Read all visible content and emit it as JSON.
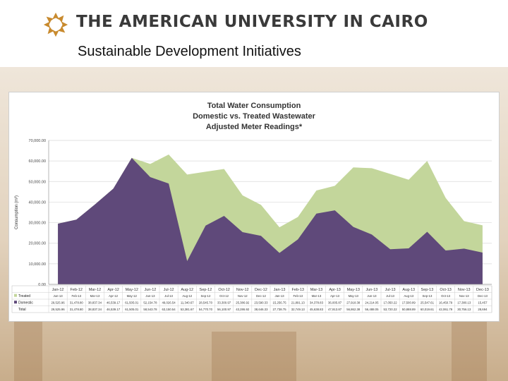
{
  "header": {
    "university_name": "THE AMERICAN UNIVERSITY IN CAIRO",
    "slide_title": "Sustainable Development Initiatives"
  },
  "colors": {
    "treated": "#c3d69b",
    "domestic": "#5f497a",
    "logo": "#c88a2e"
  },
  "chart_data": {
    "type": "area",
    "title": [
      "Total Water Consumption",
      "Domestic vs. Treated Wastewater",
      "Adjusted Meter Readings*"
    ],
    "ylabel": "Consumption (m³)",
    "ylim": [
      0,
      70000
    ],
    "yticks": [
      "0.00",
      "10,000.00",
      "20,000.00",
      "30,000.00",
      "40,000.00",
      "50,000.00",
      "60,000.00",
      "70,000.00"
    ],
    "grid": true,
    "categories": [
      "Jan-12",
      "Feb-12",
      "Mar-12",
      "Apr-12",
      "May-12",
      "Jun-12",
      "Jul-12",
      "Aug-12",
      "Sep-12",
      "Oct-12",
      "Nov-12",
      "Dec-12",
      "Jan-13",
      "Feb-13",
      "Mar-13",
      "Apr-13",
      "May-13",
      "Jun-13",
      "Jul-13",
      "Aug-13",
      "Sep-13",
      "Oct-13",
      "Nov-13",
      "Dec-13"
    ],
    "series": [
      {
        "name": "Treated",
        "values": [
          0,
          0,
          0,
          0,
          0,
          6389,
          14124,
          42041,
          26225,
          22800,
          17900,
          15056,
          12482,
          10858,
          11260,
          11908,
          28944,
          32274,
          36670,
          33388,
          34472,
          25611,
          13376,
          13237
        ],
        "row": [
          "Jun-13",
          "Feb-13",
          "Mar-13",
          "Apr-12",
          "May-12",
          "Jun-13",
          "Jul-13",
          "Aug-12",
          "Sep-12",
          "Oct-12",
          "Nov-12",
          "Dec-12",
          "Jan-13",
          "Feb-13",
          "Mar-13",
          "Apr-13",
          "May-13",
          "Jun-13",
          "Jul-13",
          "Aug-13",
          "Sep-13",
          "Oct-13",
          "Nov-13",
          "Dec-13"
        ]
      },
      {
        "name": "Domestic",
        "values": [
          29525.96,
          31478.8,
          38837.34,
          46539.17,
          61505.01,
          52154.78,
          49026.54,
          11340.67,
          28545.7,
          33300.97,
          25386.92,
          23590.33,
          15256.75,
          21891.13,
          34378.83,
          36005.87,
          27918.38,
          24214.05,
          17050.22,
          17500.89,
          25547.61,
          16450.79,
          17380.13,
          15457
        ],
        "row": [
          "29,525.96",
          "31,478.80",
          "38,837.34",
          "46,539.17",
          "61,505.01",
          "52,154.78",
          "49,026.54",
          "11,340.67",
          "28,545.70",
          "33,300.97",
          "25,386.92",
          "23,590.33",
          "15,256.75",
          "21,891.13",
          "34,378.83",
          "36,005.87",
          "27,918.38",
          "24,214.05",
          "17,050.22",
          "17,500.89",
          "25,547.61",
          "16,450.79",
          "17,380.13",
          "15,457"
        ]
      },
      {
        "name": "Total",
        "values": [
          29525.96,
          31478.8,
          38837.34,
          46539.17,
          61505.01,
          58543.78,
          63150.54,
          53381.67,
          54770.7,
          56100.97,
          43286.92,
          38646.33,
          27738.75,
          32749.13,
          45638.83,
          47913.87,
          56862.38,
          56488.05,
          53720.22,
          50888.89,
          60019.61,
          42061.79,
          30756.13,
          28694
        ],
        "row": [
          "29,525.96",
          "31,478.80",
          "38,837.34",
          "46,539.17",
          "61,505.01",
          "58,543.78",
          "63,150.54",
          "53,381.67",
          "54,770.70",
          "56,100.97",
          "43,286.92",
          "38,646.33",
          "27,738.75",
          "32,749.13",
          "45,638.83",
          "47,913.87",
          "56,862.38",
          "56,488.05",
          "53,720.22",
          "50,888.89",
          "60,019.61",
          "42,061.79",
          "30,756.13",
          "28,694"
        ]
      }
    ]
  }
}
